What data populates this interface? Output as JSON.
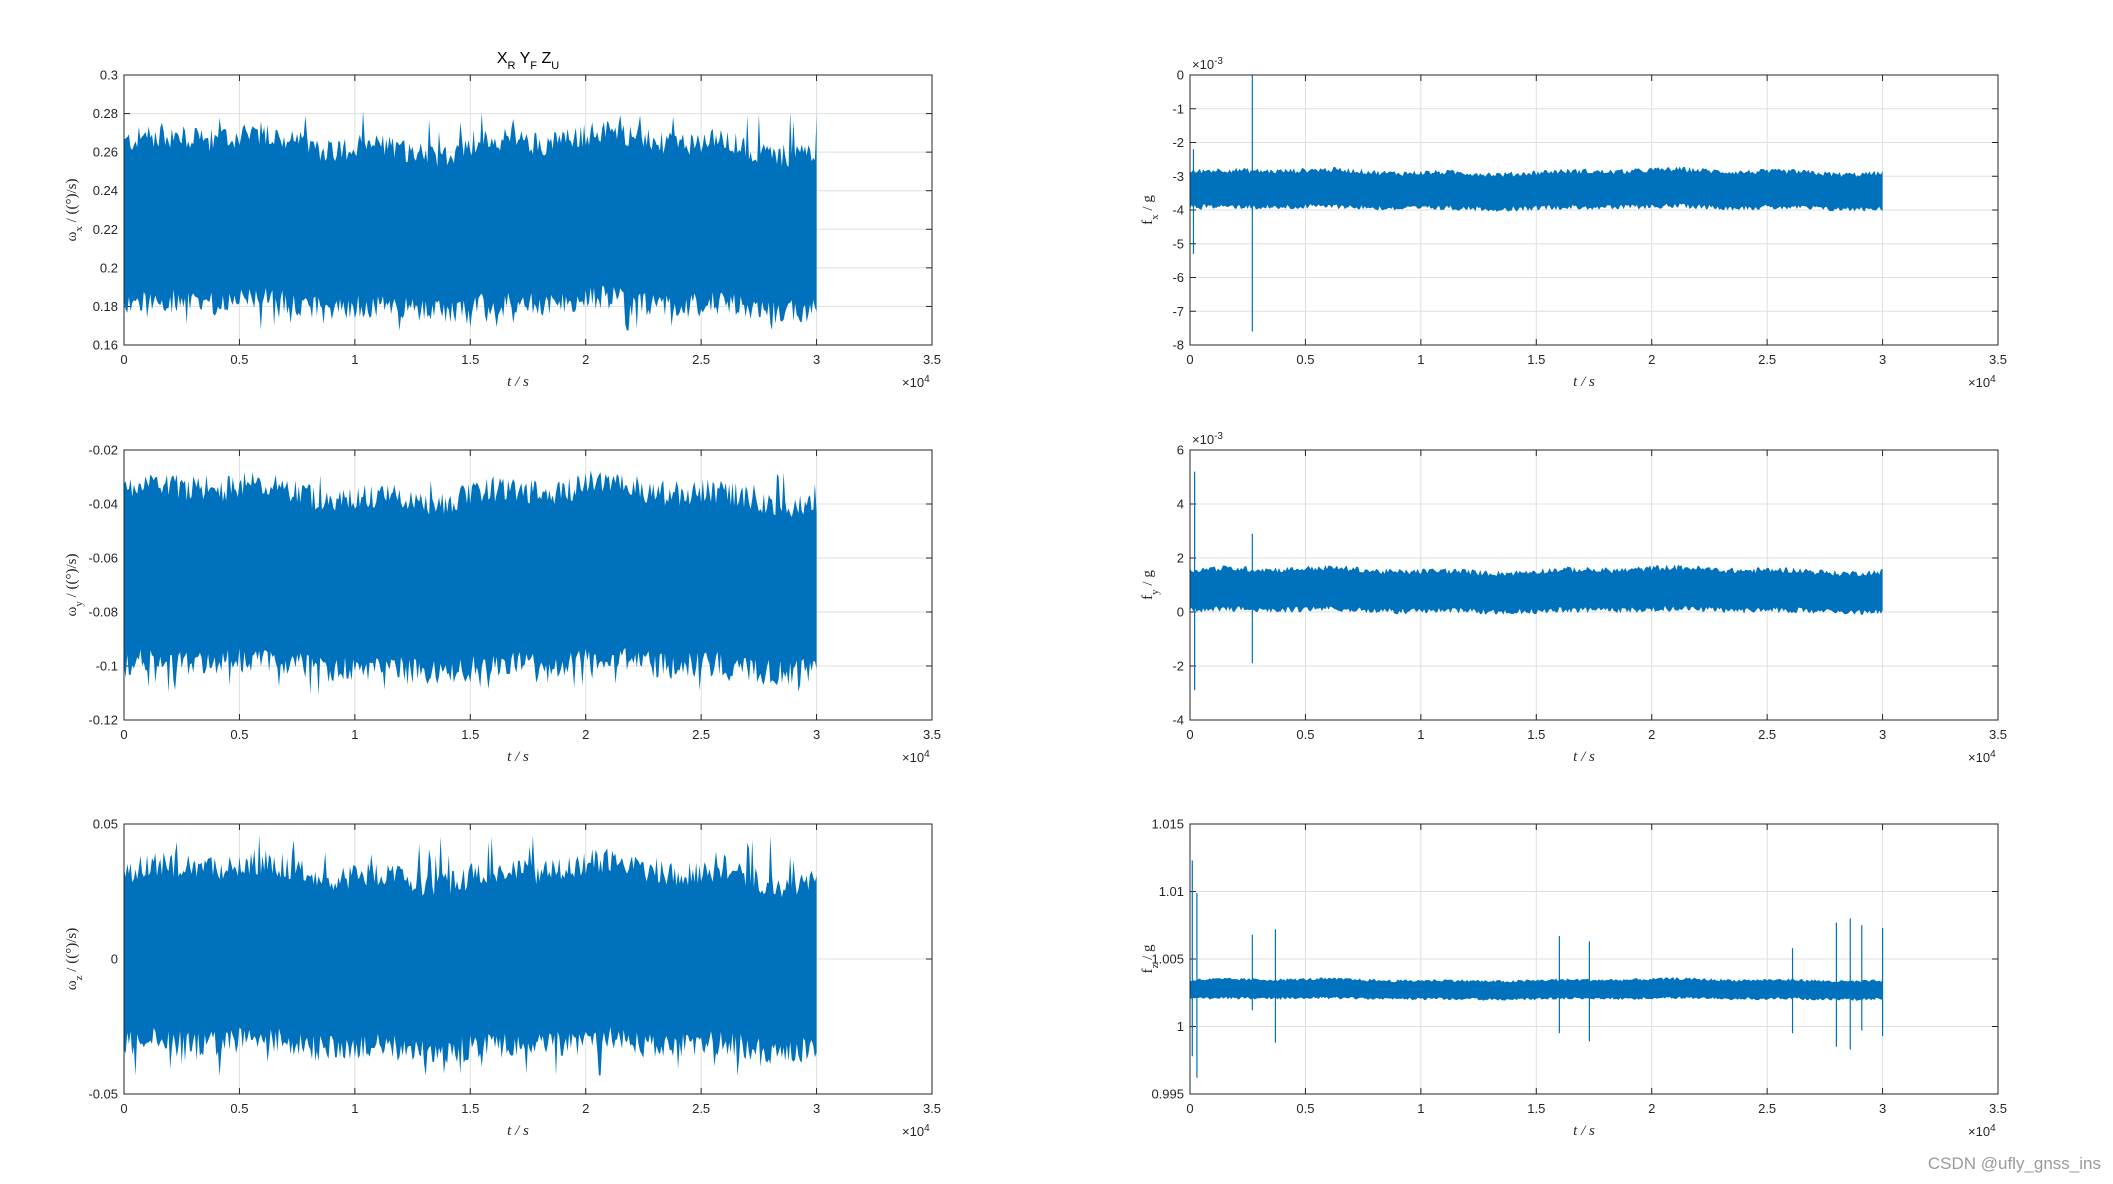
{
  "chart_data": [
    {
      "type": "line",
      "title": "X_R Y_F Z_U",
      "xlabel": "t  / s",
      "ylabel": "ω_x / ((°)/s)",
      "xlim": [
        0,
        35000
      ],
      "ylim": [
        0.16,
        0.3
      ],
      "xticks": [
        "0",
        "0.5",
        "1",
        "1.5",
        "2",
        "2.5",
        "3",
        "3.5"
      ],
      "x_exponent": "×10^4",
      "yticks": [
        "0.16",
        "0.18",
        "0.2",
        "0.22",
        "0.24",
        "0.26",
        "0.28",
        "0.3"
      ],
      "grid": true,
      "series": [
        {
          "x": [
            0,
            30000
          ],
          "center": 0.222,
          "band_min": 0.183,
          "band_max": 0.262,
          "peak_min": 0.167,
          "peak_max": 0.282
        }
      ]
    },
    {
      "type": "line",
      "title": "",
      "xlabel": "t  / s",
      "ylabel": "f_x / g",
      "xlim": [
        0,
        35000
      ],
      "ylim": [
        -0.008,
        0
      ],
      "xticks": [
        "0",
        "0.5",
        "1",
        "1.5",
        "2",
        "2.5",
        "3",
        "3.5"
      ],
      "x_exponent": "×10^4",
      "yticks": [
        "0",
        "-1",
        "-2",
        "-3",
        "-4",
        "-5",
        "-6",
        "-7",
        "-8"
      ],
      "y_exponent": "×10^-3",
      "grid": true,
      "series": [
        {
          "x": [
            0,
            30000
          ],
          "center": -0.00342,
          "band_min": -0.0039,
          "band_max": -0.0029,
          "spikes": [
            {
              "x": 150,
              "min": -0.0053,
              "max": -0.0022
            },
            {
              "x": 2700,
              "min": -0.0076,
              "max": 0.0
            }
          ]
        }
      ]
    },
    {
      "type": "line",
      "title": "",
      "xlabel": "t  / s",
      "ylabel": "ω_y / ((°)/s)",
      "xlim": [
        0,
        35000
      ],
      "ylim": [
        -0.12,
        -0.02
      ],
      "xticks": [
        "0",
        "0.5",
        "1",
        "1.5",
        "2",
        "2.5",
        "3",
        "3.5"
      ],
      "x_exponent": "×10^4",
      "yticks": [
        "-0.12",
        "-0.1",
        "-0.08",
        "-0.06",
        "-0.04",
        "-0.02"
      ],
      "grid": true,
      "series": [
        {
          "x": [
            0,
            30000
          ],
          "center": -0.068,
          "band_min": -0.098,
          "band_max": -0.038,
          "peak_min": -0.112,
          "peak_max": -0.028
        }
      ]
    },
    {
      "type": "line",
      "title": "",
      "xlabel": "t  / s",
      "ylabel": "f_y / g",
      "xlim": [
        0,
        35000
      ],
      "ylim": [
        -0.004,
        0.006
      ],
      "xticks": [
        "0",
        "0.5",
        "1",
        "1.5",
        "2",
        "2.5",
        "3",
        "3.5"
      ],
      "x_exponent": "×10^4",
      "yticks": [
        "-4",
        "-2",
        "0",
        "2",
        "4",
        "6"
      ],
      "y_exponent": "×10^-3",
      "grid": true,
      "series": [
        {
          "x": [
            0,
            30000
          ],
          "center": 0.0008,
          "band_min": 0.0001,
          "band_max": 0.0015,
          "spikes": [
            {
              "x": 200,
              "min": -0.0029,
              "max": 0.0052
            },
            {
              "x": 2700,
              "min": -0.0019,
              "max": 0.0029
            }
          ]
        }
      ]
    },
    {
      "type": "line",
      "title": "",
      "xlabel": "t  / s",
      "ylabel": "ω_z / ((°)/s)",
      "xlim": [
        0,
        35000
      ],
      "ylim": [
        -0.05,
        0.05
      ],
      "xticks": [
        "0",
        "0.5",
        "1",
        "1.5",
        "2",
        "2.5",
        "3",
        "3.5"
      ],
      "x_exponent": "×10^4",
      "yticks": [
        "-0.05",
        "0",
        "0.05"
      ],
      "grid": true,
      "series": [
        {
          "x": [
            0,
            30000
          ],
          "center": 0.0,
          "band_min": -0.03,
          "band_max": 0.03,
          "peak_min": -0.044,
          "peak_max": 0.046
        }
      ]
    },
    {
      "type": "line",
      "title": "",
      "xlabel": "t  / s",
      "ylabel": "f_z / g",
      "xlim": [
        0,
        35000
      ],
      "ylim": [
        0.995,
        1.015
      ],
      "xticks": [
        "0",
        "0.5",
        "1",
        "1.5",
        "2",
        "2.5",
        "3",
        "3.5"
      ],
      "x_exponent": "×10^4",
      "yticks": [
        "0.995",
        "1",
        "1.005",
        "1.01",
        "1.015"
      ],
      "grid": true,
      "series": [
        {
          "x": [
            0,
            30000
          ],
          "center": 1.0027,
          "band_min": 1.0021,
          "band_max": 1.0034,
          "spikes": [
            {
              "x": 100,
              "min": 0.9978,
              "max": 1.0123
            },
            {
              "x": 300,
              "min": 0.9962,
              "max": 1.0099
            },
            {
              "x": 2700,
              "min": 1.0012,
              "max": 1.0068
            },
            {
              "x": 3700,
              "min": 0.9988,
              "max": 1.0072
            },
            {
              "x": 16000,
              "min": 0.9995,
              "max": 1.0067
            },
            {
              "x": 17300,
              "min": 0.9989,
              "max": 1.0063
            },
            {
              "x": 26100,
              "min": 0.9995,
              "max": 1.0058
            },
            {
              "x": 28000,
              "min": 0.9985,
              "max": 1.0077
            },
            {
              "x": 28600,
              "min": 0.9983,
              "max": 1.008
            },
            {
              "x": 29100,
              "min": 0.9997,
              "max": 1.0075
            },
            {
              "x": 30000,
              "min": 0.9993,
              "max": 1.0073
            }
          ]
        }
      ]
    }
  ],
  "watermark": "CSDN @ufly_gnss_ins"
}
